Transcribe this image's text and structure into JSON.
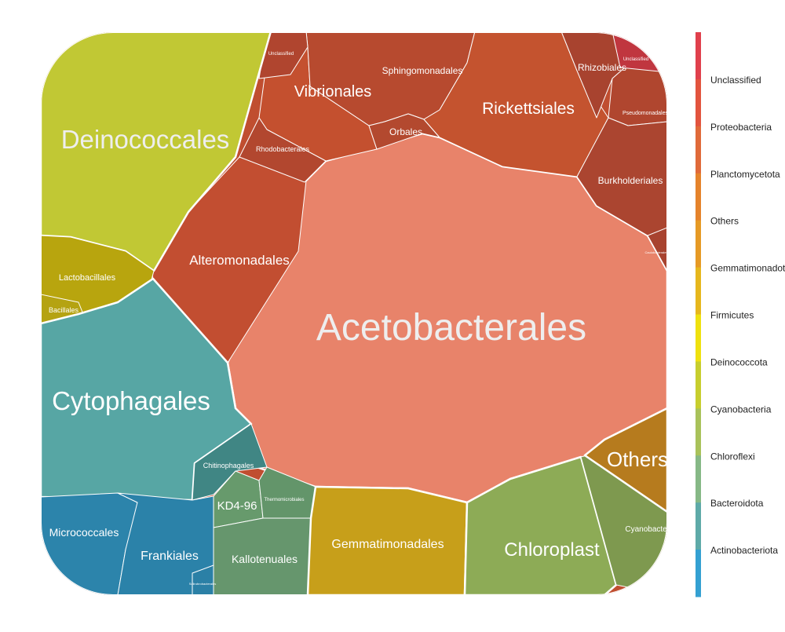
{
  "chart_data": {
    "type": "voronoi-treemap",
    "title": "",
    "legend": {
      "placement": "right",
      "entries": [
        {
          "label": "",
          "color": "#e0404c"
        },
        {
          "label": "Unclassified",
          "color": "#e2543e"
        },
        {
          "label": "Proteobacteria",
          "color": "#e06a39"
        },
        {
          "label": "Planctomycetota",
          "color": "#e5832b"
        },
        {
          "label": "Others",
          "color": "#e69a25"
        },
        {
          "label": "Gemmatimonadota",
          "color": "#e6b71d"
        },
        {
          "label": "Firmicutes",
          "color": "#efe10f"
        },
        {
          "label": "Deinococcota",
          "color": "#c7ce2e"
        },
        {
          "label": "Cyanobacteria",
          "color": "#a9c25a"
        },
        {
          "label": "Chloroflexi",
          "color": "#86b886"
        },
        {
          "label": "Bacteroidota",
          "color": "#5eaaa8"
        },
        {
          "label": "Actinobacteriota",
          "color": "#34a0d2"
        }
      ]
    },
    "cells": [
      {
        "label": "Acetobacterales",
        "phylum": "Proteobacteria",
        "color": "#e8836a",
        "label_color": "#eeeeee"
      },
      {
        "label": "Alteromonadales",
        "phylum": "Proteobacteria",
        "color": "#c24e31",
        "label_color": "#ffffff"
      },
      {
        "label": "Vibrionales",
        "phylum": "Proteobacteria",
        "color": "#c4502f",
        "label_color": "#ffffff"
      },
      {
        "label": "Sphingomonadales",
        "phylum": "Proteobacteria",
        "color": "#b74a2f",
        "label_color": "#ffffff"
      },
      {
        "label": "Orbales",
        "phylum": "Proteobacteria",
        "color": "#b3492f",
        "label_color": "#ffffff"
      },
      {
        "label": "Rickettsiales",
        "phylum": "Proteobacteria",
        "color": "#c4532f",
        "label_color": "#ffffff"
      },
      {
        "label": "Rhizobiales",
        "phylum": "Proteobacteria",
        "color": "#a8432f",
        "label_color": "#ffffff"
      },
      {
        "label": "Pseudomonadales",
        "phylum": "Proteobacteria",
        "color": "#b0462f",
        "label_color": "#ffffff"
      },
      {
        "label": "Burkholderiales",
        "phylum": "Proteobacteria",
        "color": "#ab4530",
        "label_color": "#ffffff"
      },
      {
        "label": "Rhodobacterales",
        "phylum": "Proteobacteria",
        "color": "#b2472f",
        "label_color": "#ffffff"
      },
      {
        "label": "Unclassified",
        "phylum": "Proteobacteria",
        "color": "#b0452f",
        "label_color": "#ffffff"
      },
      {
        "label": "Caulobacterales",
        "phylum": "Proteobacteria",
        "color": "#a8432f",
        "label_color": "#ffffff"
      },
      {
        "label": "Unclassified",
        "phylum": "Unclassified",
        "color": "#c0363f",
        "label_color": "#ffffff"
      },
      {
        "label": "Deinococcales",
        "phylum": "Deinococcota",
        "color": "#c1c834",
        "label_color": "#eeeeee"
      },
      {
        "label": "Lactobacillales",
        "phylum": "Firmicutes",
        "color": "#b8a50e",
        "label_color": "#ffffff"
      },
      {
        "label": "Bacillales",
        "phylum": "Firmicutes",
        "color": "#b5a312",
        "label_color": "#ffffff"
      },
      {
        "label": "Cytophagales",
        "phylum": "Bacteroidota",
        "color": "#57a6a4",
        "label_color": "#ffffff"
      },
      {
        "label": "Chitinophagales",
        "phylum": "Bacteroidota",
        "color": "#408684",
        "label_color": "#ffffff"
      },
      {
        "label": "Micrococcales",
        "phylum": "Actinobacteriota",
        "color": "#2c84ab",
        "label_color": "#ffffff"
      },
      {
        "label": "Frankiales",
        "phylum": "Actinobacteriota",
        "color": "#2b82a9",
        "label_color": "#ffffff"
      },
      {
        "label": "Solirubrobacterales",
        "phylum": "Actinobacteriota",
        "color": "#2b80a6",
        "label_color": "#ffffff"
      },
      {
        "label": "KD4-96",
        "phylum": "Chloroflexi",
        "color": "#679a6c",
        "label_color": "#ffffff"
      },
      {
        "label": "Thermomicrobiales",
        "phylum": "Chloroflexi",
        "color": "#63956a",
        "label_color": "#ffffff"
      },
      {
        "label": "Kallotenuales",
        "phylum": "Chloroflexi",
        "color": "#66966d",
        "label_color": "#ffffff"
      },
      {
        "label": "Gemmatimonadales",
        "phylum": "Gemmatimonadota",
        "color": "#c79f1a",
        "label_color": "#ffffff"
      },
      {
        "label": "Chloroplast",
        "phylum": "Cyanobacteria",
        "color": "#8dab56",
        "label_color": "#ffffff"
      },
      {
        "label": "Cyanobacteriales",
        "phylum": "Cyanobacteria",
        "color": "#7e994f",
        "label_color": "#ffffff"
      },
      {
        "label": "Others",
        "phylum": "Others",
        "color": "#b67b1e",
        "label_color": "#ffffff"
      }
    ]
  }
}
